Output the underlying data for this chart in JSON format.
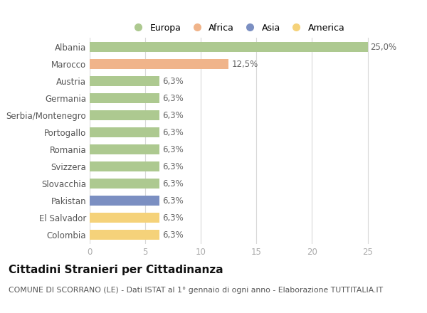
{
  "categories": [
    "Albania",
    "Marocco",
    "Austria",
    "Germania",
    "Serbia/Montenegro",
    "Portogallo",
    "Romania",
    "Svizzera",
    "Slovacchia",
    "Pakistan",
    "El Salvador",
    "Colombia"
  ],
  "values": [
    25.0,
    12.5,
    6.3,
    6.3,
    6.3,
    6.3,
    6.3,
    6.3,
    6.3,
    6.3,
    6.3,
    6.3
  ],
  "labels": [
    "25,0%",
    "12,5%",
    "6,3%",
    "6,3%",
    "6,3%",
    "6,3%",
    "6,3%",
    "6,3%",
    "6,3%",
    "6,3%",
    "6,3%",
    "6,3%"
  ],
  "colors": [
    "#adc990",
    "#f0b48a",
    "#adc990",
    "#adc990",
    "#adc990",
    "#adc990",
    "#adc990",
    "#adc990",
    "#adc990",
    "#7b8fc2",
    "#f5d27a",
    "#f5d27a"
  ],
  "legend_labels": [
    "Europa",
    "Africa",
    "Asia",
    "America"
  ],
  "legend_colors": [
    "#adc990",
    "#f0b48a",
    "#7b8fc2",
    "#f5d27a"
  ],
  "title": "Cittadini Stranieri per Cittadinanza",
  "subtitle": "COMUNE DI SCORRANO (LE) - Dati ISTAT al 1° gennaio di ogni anno - Elaborazione TUTTITALIA.IT",
  "xlim": [
    0,
    26.5
  ],
  "xticks": [
    0,
    5,
    10,
    15,
    20,
    25
  ],
  "background_color": "#ffffff",
  "grid_color": "#d8d8d8",
  "bar_height": 0.55,
  "label_fontsize": 8.5,
  "title_fontsize": 11,
  "subtitle_fontsize": 7.8,
  "tick_fontsize": 8.5,
  "ytick_fontsize": 8.5
}
